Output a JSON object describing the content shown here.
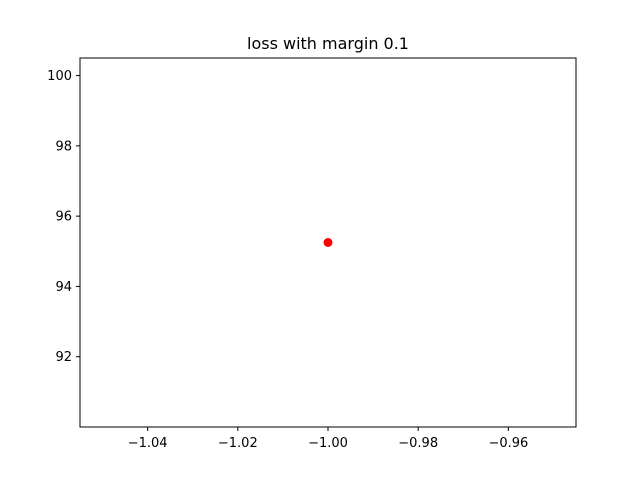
{
  "chart_data": {
    "type": "scatter",
    "title": "loss with margin 0.1",
    "xlabel": "",
    "ylabel": "",
    "xlim": [
      -1.055,
      -0.945
    ],
    "ylim": [
      90.0,
      100.5
    ],
    "xticks": [
      -1.04,
      -1.02,
      -1.0,
      -0.98,
      -0.96
    ],
    "xtick_labels": [
      "−1.04",
      "−1.02",
      "−1.00",
      "−0.98",
      "−0.96"
    ],
    "yticks": [
      92,
      94,
      96,
      98,
      100
    ],
    "ytick_labels": [
      "92",
      "94",
      "96",
      "98",
      "100"
    ],
    "grid": false,
    "legend": "none",
    "series": [
      {
        "color": "#ff0000",
        "marker": "circle",
        "points": [
          {
            "x": -1.0,
            "y": 95.25
          }
        ]
      }
    ]
  }
}
